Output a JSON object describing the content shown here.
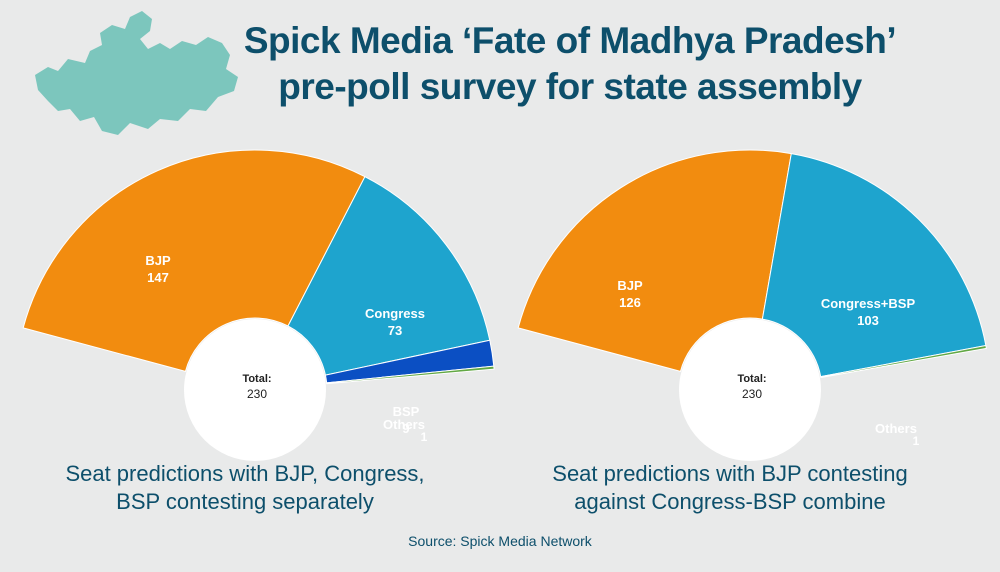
{
  "title": {
    "line1": "Spick Media ‘Fate of Madhya Pradesh’",
    "line2": "pre-poll survey for state assembly"
  },
  "source": "Source: Spick Media Network",
  "colors": {
    "bjp": "#f28c0f",
    "congress": "#1ea4ce",
    "bsp": "#0b4fc3",
    "others": "#62a844",
    "title": "#0d4f6b",
    "map": "#7cc6bd"
  },
  "chart_data": [
    {
      "type": "pie",
      "style": "half-donut",
      "caption": "Seat predictions with BJP, Congress, BSP contesting separately",
      "caption_lines": [
        "Seat predictions with BJP, Congress,",
        "BSP contesting separately"
      ],
      "center_label": "Total:",
      "center_value": "230",
      "slices": [
        {
          "label": "BJP",
          "value": 147,
          "color": "#f28c0f"
        },
        {
          "label": "Congress",
          "value": 73,
          "color": "#1ea4ce"
        },
        {
          "label": "BSP",
          "value": 9,
          "color": "#0b4fc3"
        },
        {
          "label": "Others",
          "value": 1,
          "color": "#62a844"
        }
      ]
    },
    {
      "type": "pie",
      "style": "half-donut",
      "caption": "Seat predictions with BJP contesting against Congress-BSP combine",
      "caption_lines": [
        "Seat predictions with BJP contesting",
        "against Congress-BSP combine"
      ],
      "center_label": "Total:",
      "center_value": "230",
      "slices": [
        {
          "label": "BJP",
          "value": 126,
          "color": "#f28c0f"
        },
        {
          "label": "Congress+BSP",
          "value": 103,
          "color": "#1ea4ce"
        },
        {
          "label": "Others",
          "value": 1,
          "color": "#62a844"
        }
      ]
    }
  ]
}
